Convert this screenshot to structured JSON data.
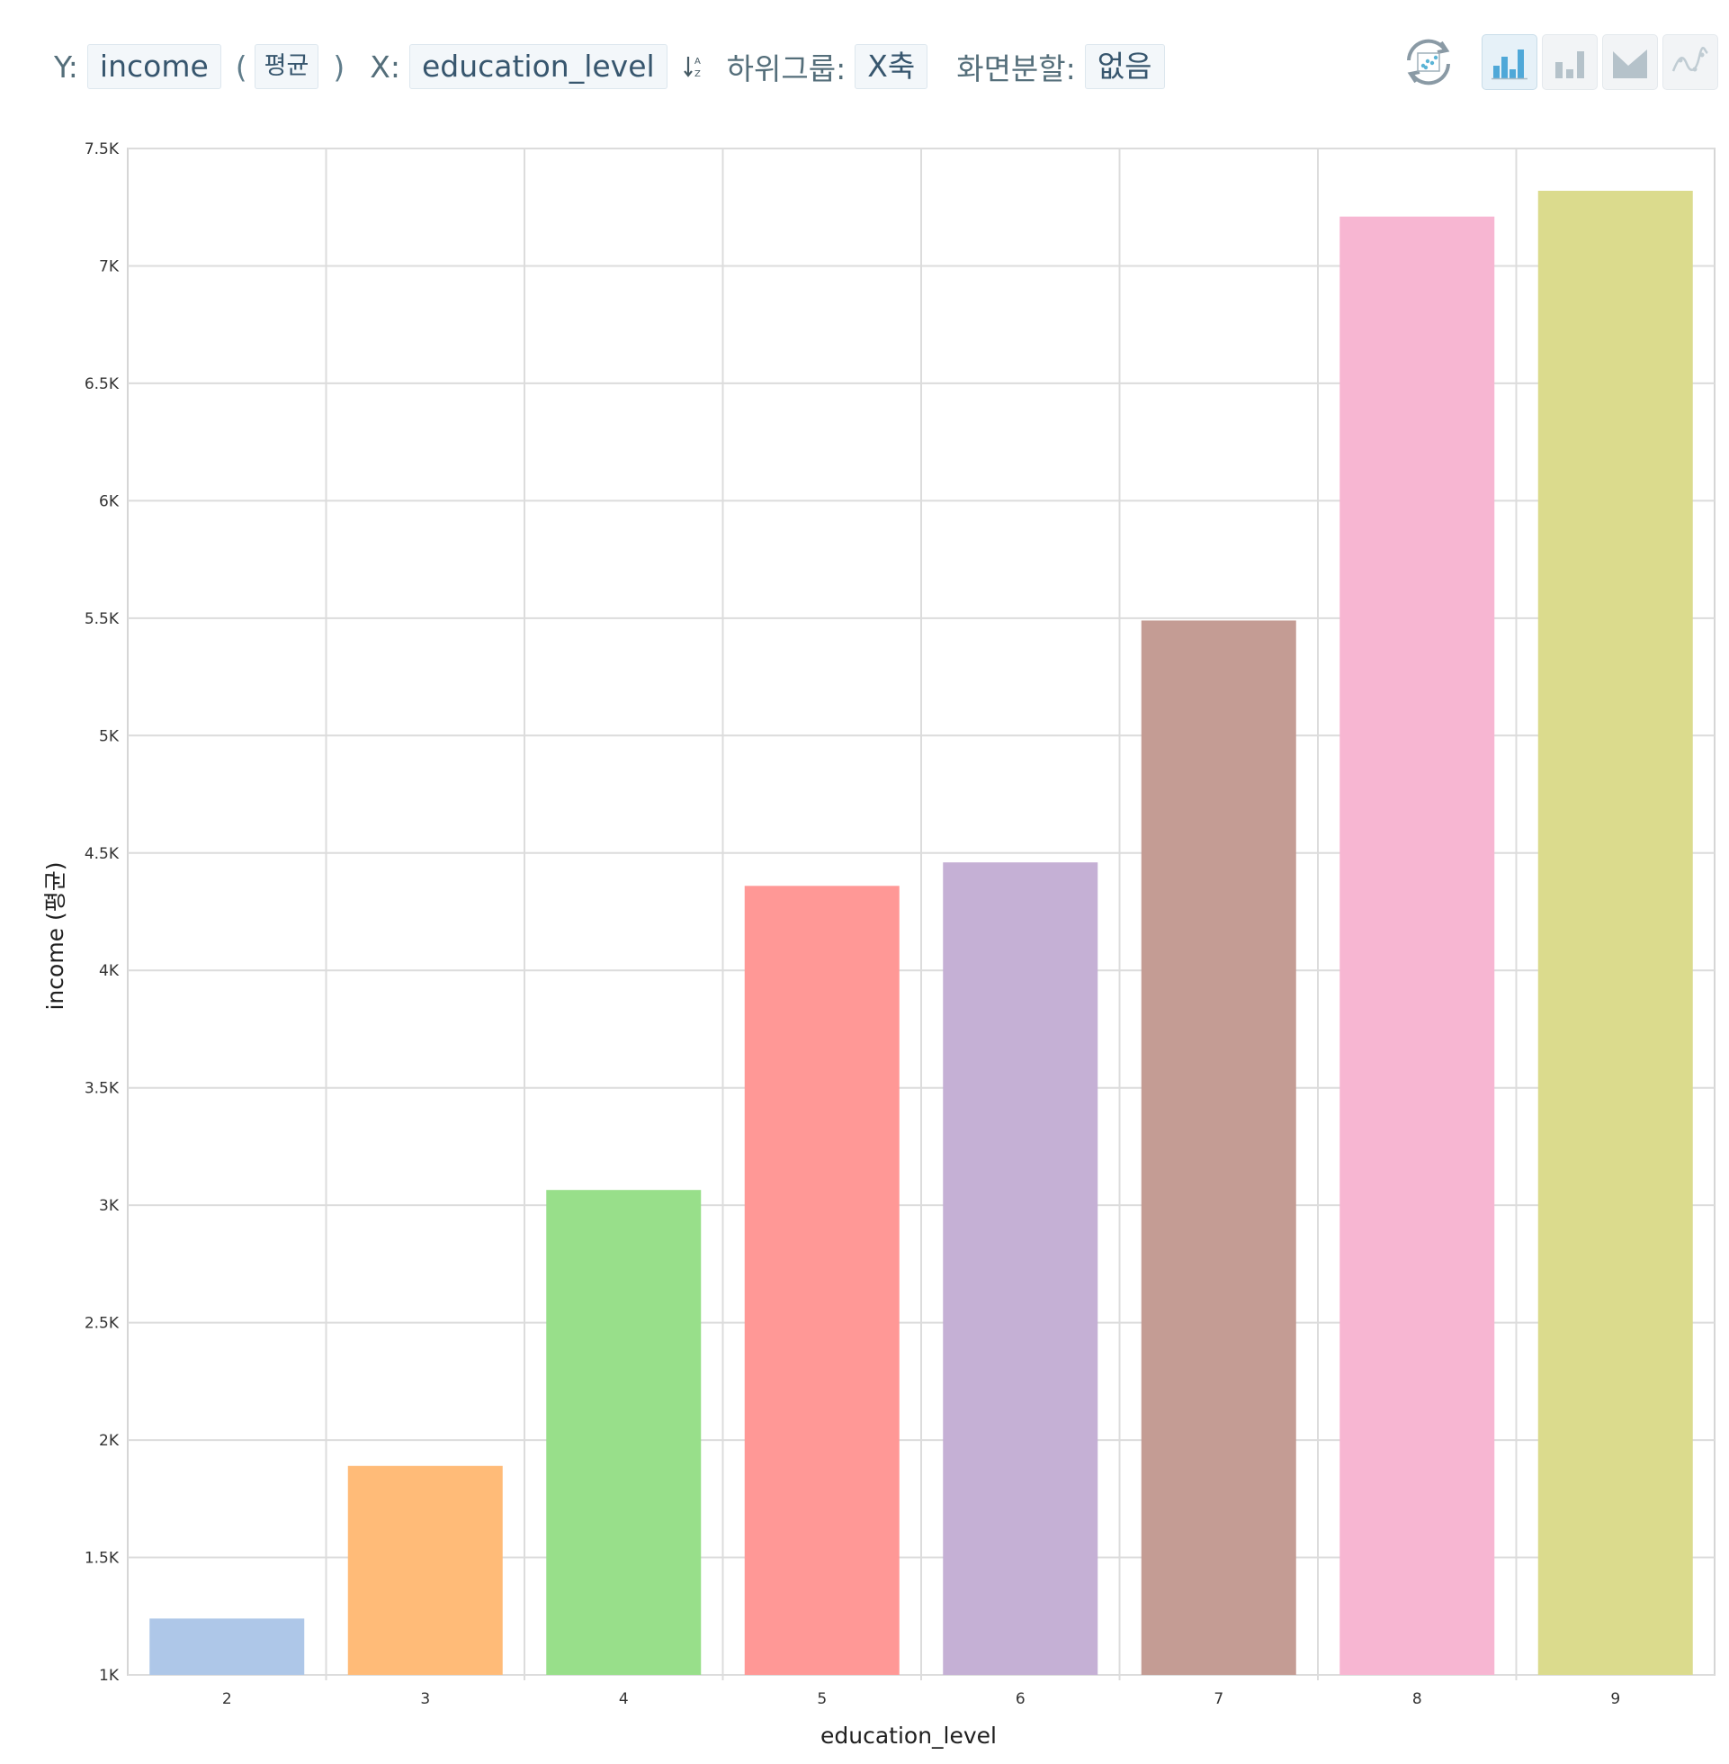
{
  "toolbar": {
    "y_label": "Y:",
    "y_field": "income",
    "paren_open": "(",
    "aggregation": "평균",
    "paren_close": ")",
    "x_label": "X:",
    "x_field": "education_level",
    "subgroup_label": "하위그룹:",
    "subgroup_value": "X축",
    "split_label": "화면분할:",
    "split_value": "없음"
  },
  "tools": {
    "refresh_icon": "refresh-chart-icon",
    "chart_types": [
      {
        "name": "colored-bar-chart-icon",
        "active": true
      },
      {
        "name": "bar-chart-icon",
        "active": false
      },
      {
        "name": "area-chart-icon",
        "active": false
      },
      {
        "name": "line-chart-icon",
        "active": false
      }
    ]
  },
  "chart_data": {
    "type": "bar",
    "categories": [
      "2",
      "3",
      "4",
      "5",
      "6",
      "7",
      "8",
      "9"
    ],
    "values": [
      1240,
      1890,
      3065,
      4360,
      4460,
      5490,
      7210,
      7320
    ],
    "colors": [
      "#aec7e8",
      "#ffbb78",
      "#98df8a",
      "#ff9896",
      "#c5b0d5",
      "#c49c94",
      "#f7b6d2",
      "#dbdb8d"
    ],
    "xlabel": "education_level",
    "ylabel": "income (평균)",
    "ylim": [
      1000,
      7500
    ],
    "yticks": [
      1000,
      1500,
      2000,
      2500,
      3000,
      3500,
      4000,
      4500,
      5000,
      5500,
      6000,
      6500,
      7000,
      7500
    ],
    "ytick_labels": [
      "1K",
      "1.5K",
      "2K",
      "2.5K",
      "3K",
      "3.5K",
      "4K",
      "4.5K",
      "5K",
      "5.5K",
      "6K",
      "6.5K",
      "7K",
      "7.5K"
    ],
    "grid": true
  }
}
